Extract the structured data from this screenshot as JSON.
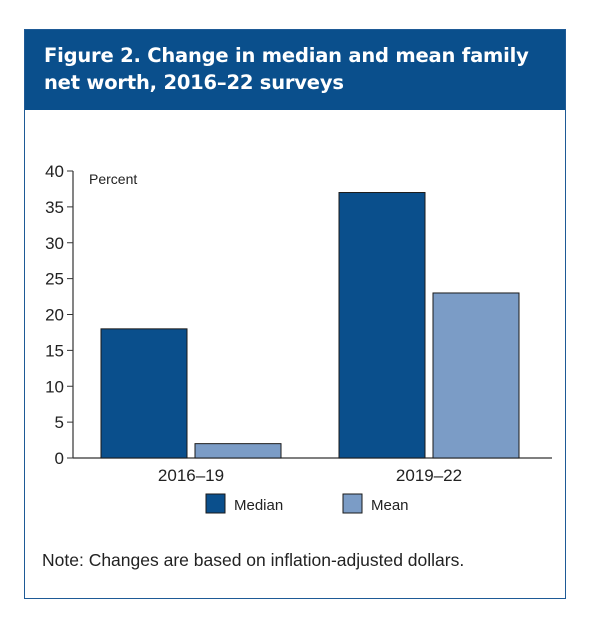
{
  "figure": {
    "title_line1": "Figure 2. Change in median and mean family",
    "title_line2": "net worth, 2016–22 surveys",
    "note": "Note: Changes are based on inflation-adjusted dollars."
  },
  "chart_data": {
    "type": "bar",
    "title": "Figure 2. Change in median and mean family net worth, 2016–22 surveys",
    "xlabel": "",
    "ylabel": "Percent",
    "ylim": [
      0,
      40
    ],
    "yticks": [
      0,
      5,
      10,
      15,
      20,
      25,
      30,
      35,
      40
    ],
    "categories": [
      "2016–19",
      "2019–22"
    ],
    "series": [
      {
        "name": "Median",
        "values": [
          18,
          37
        ],
        "color": "#0a4f8c"
      },
      {
        "name": "Mean",
        "values": [
          2,
          23
        ],
        "color": "#7b9cc6"
      }
    ],
    "grid": false,
    "legend_position": "bottom-center"
  }
}
